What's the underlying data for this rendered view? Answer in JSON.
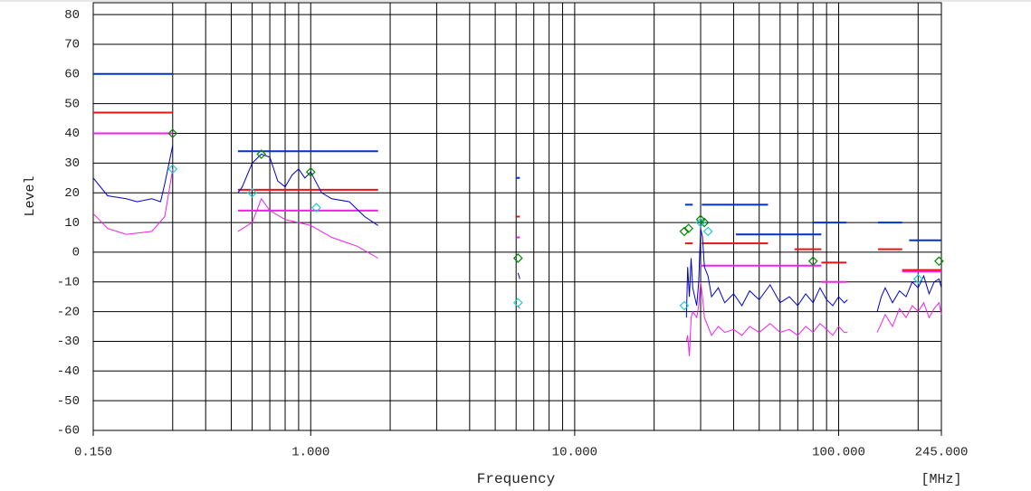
{
  "chart_data": {
    "type": "line",
    "xscale": "log",
    "xlabel": "Frequency",
    "ylabel": "Level",
    "xunit": "[MHz]",
    "xlim": [
      0.15,
      245
    ],
    "ylim": [
      -60,
      84
    ],
    "xticks": [
      {
        "value": 0.15,
        "label": "0.150"
      },
      {
        "value": 1,
        "label": "1.000"
      },
      {
        "value": 10,
        "label": "10.000"
      },
      {
        "value": 100,
        "label": "100.000"
      },
      {
        "value": 245,
        "label": "245.000"
      }
    ],
    "xgrid": [
      0.3,
      0.4,
      0.5,
      0.6,
      0.7,
      0.8,
      0.9,
      1,
      2,
      3,
      4,
      5,
      6,
      7,
      8,
      9,
      10,
      20,
      30,
      40,
      50,
      60,
      70,
      80,
      90,
      100,
      200
    ],
    "yticks": [
      -60,
      -50,
      -40,
      -30,
      -20,
      -10,
      0,
      10,
      20,
      30,
      40,
      50,
      60,
      70,
      80
    ],
    "grid": true,
    "series": [
      {
        "color": "#0033cc",
        "style": "line",
        "width": 2,
        "x": [
          0.15,
          0.3,
          null,
          0.53,
          1.8,
          null,
          6.0,
          6.2,
          null,
          26.2,
          28,
          null,
          30.3,
          54,
          null,
          40.8,
          86,
          null,
          80,
          107,
          null,
          141,
          174,
          null,
          185,
          245
        ],
        "values": [
          60,
          60,
          null,
          34,
          34,
          null,
          25,
          25,
          null,
          16,
          16,
          null,
          16,
          16,
          null,
          6,
          6,
          null,
          10,
          10,
          null,
          10,
          10,
          null,
          4,
          4
        ]
      },
      {
        "color": "#ee1111",
        "style": "line",
        "width": 2,
        "x": [
          0.15,
          0.3,
          null,
          0.53,
          1.8,
          null,
          6.0,
          6.2,
          null,
          26.2,
          28,
          null,
          30.3,
          54,
          null,
          68,
          86,
          null,
          86,
          107,
          null,
          141,
          174,
          null,
          174,
          245
        ],
        "values": [
          47,
          47,
          null,
          21,
          21,
          null,
          12,
          12,
          null,
          3,
          3,
          null,
          3,
          3,
          null,
          1,
          1,
          null,
          -3.5,
          -3.5,
          null,
          1,
          1,
          null,
          -6,
          -6
        ]
      },
      {
        "color": "#ee22ee",
        "style": "line",
        "width": 2,
        "x": [
          0.15,
          0.3,
          null,
          0.53,
          1.8,
          null,
          6.0,
          6.2,
          null,
          30,
          86,
          null,
          86,
          107,
          null,
          174,
          245
        ],
        "values": [
          40,
          40,
          null,
          14,
          14,
          null,
          5,
          5,
          null,
          -4.5,
          -4.5,
          null,
          -10,
          -10,
          null,
          -6.5,
          -6.5
        ]
      },
      {
        "color": "#0000cc",
        "style": "line",
        "width": 1,
        "x": [
          0.15,
          0.17,
          0.2,
          0.22,
          0.25,
          0.27,
          0.28,
          0.3,
          null,
          0.53,
          0.55,
          0.6,
          0.65,
          0.7,
          0.75,
          0.8,
          0.85,
          0.9,
          0.95,
          1.0,
          1.1,
          1.2,
          1.4,
          1.6,
          1.8,
          null,
          6.1,
          6.2,
          null,
          26.5,
          26.8,
          27.2,
          27.6,
          28,
          29,
          29.5,
          30,
          30.5,
          31,
          32,
          33,
          35,
          37,
          40,
          43,
          46,
          50,
          55,
          60,
          65,
          70,
          75,
          80,
          85,
          90,
          95,
          100,
          105,
          108,
          null,
          140,
          145,
          150,
          160,
          170,
          180,
          190,
          200,
          210,
          220,
          230,
          240,
          245
        ],
        "values": [
          25,
          19,
          18,
          17,
          18,
          17,
          23,
          36,
          null,
          20,
          22,
          30,
          33,
          32,
          24,
          22,
          26,
          28,
          25,
          27,
          20,
          18,
          17,
          12,
          9,
          null,
          -7,
          -9,
          null,
          -22,
          -5,
          -15,
          -2,
          -12,
          -18,
          -10,
          8,
          5,
          -5,
          -8,
          -15,
          -12,
          -17,
          -14,
          -18,
          -13,
          -16,
          -11,
          -17,
          -15,
          -18,
          -14,
          -17,
          -12,
          -16,
          -18,
          -15,
          -17,
          -16,
          null,
          -20,
          -15,
          -12,
          -17,
          -13,
          -15,
          -10,
          -12,
          -8,
          -14,
          -10,
          -9,
          -12
        ]
      },
      {
        "color": "#ee22ee",
        "style": "line",
        "width": 1,
        "x": [
          0.15,
          0.17,
          0.2,
          0.25,
          0.28,
          0.3,
          null,
          0.53,
          0.6,
          0.65,
          0.7,
          0.8,
          0.9,
          1.0,
          1.2,
          1.5,
          1.8,
          null,
          6.1,
          6.2,
          null,
          26.5,
          26.8,
          27.2,
          27.6,
          28,
          29,
          29.5,
          30,
          30.5,
          31,
          32,
          33,
          35,
          37,
          40,
          43,
          46,
          50,
          55,
          60,
          65,
          70,
          75,
          80,
          85,
          90,
          95,
          100,
          105,
          108,
          null,
          140,
          145,
          150,
          160,
          170,
          180,
          190,
          200,
          210,
          220,
          230,
          240,
          245
        ],
        "values": [
          13,
          8,
          6,
          7,
          12,
          28,
          null,
          7,
          10,
          18,
          14,
          11,
          10,
          9,
          5,
          2,
          -2,
          null,
          -18,
          -19,
          null,
          -30,
          -28,
          -35,
          -22,
          -20,
          -22,
          -18,
          -10,
          -15,
          -22,
          -25,
          -28,
          -25,
          -27,
          -26,
          -28,
          -25,
          -27,
          -24,
          -27,
          -26,
          -28,
          -25,
          -27,
          -24,
          -26,
          -28,
          -25,
          -27,
          -27,
          null,
          -27,
          -24,
          -21,
          -25,
          -19,
          -22,
          -18,
          -20,
          -17,
          -22,
          -19,
          -17,
          -21
        ]
      },
      {
        "color": "#008800",
        "style": "markers",
        "x": [
          0.3,
          0.65,
          1.0,
          6.1,
          26,
          27,
          30,
          31,
          80,
          240
        ],
        "values": [
          40,
          33,
          27,
          -2,
          7,
          8,
          11,
          10,
          -3,
          -3
        ]
      },
      {
        "color": "#22cccc",
        "style": "markers",
        "x": [
          0.3,
          0.6,
          1.05,
          6.1,
          26,
          30,
          32,
          200
        ],
        "values": [
          28,
          20,
          15,
          -17,
          -18,
          10,
          7,
          -9
        ]
      }
    ]
  }
}
